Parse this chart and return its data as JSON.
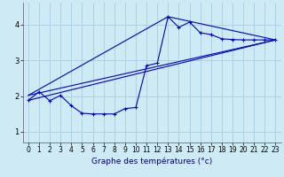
{
  "bg_color": "#ceeaf5",
  "grid_color": "#aaccdd",
  "line_color": "#0000cc",
  "xlabel": "Graphe des températures (°c)",
  "xlim": [
    -0.5,
    23.5
  ],
  "ylim": [
    0.7,
    4.6
  ],
  "yticks": [
    1,
    2,
    3,
    4
  ],
  "xticks": [
    0,
    1,
    2,
    3,
    4,
    5,
    6,
    7,
    8,
    9,
    10,
    11,
    12,
    13,
    14,
    15,
    16,
    17,
    18,
    19,
    20,
    21,
    22,
    23
  ],
  "series1_x": [
    0,
    1,
    2,
    3,
    4,
    5,
    6,
    7,
    8,
    9,
    10,
    11,
    12,
    13,
    14,
    15,
    16,
    17,
    18,
    19,
    20,
    21,
    22,
    23
  ],
  "series1_y": [
    1.88,
    2.12,
    1.87,
    2.02,
    1.73,
    1.52,
    1.5,
    1.5,
    1.5,
    1.65,
    1.68,
    2.85,
    2.92,
    4.22,
    3.92,
    4.07,
    3.77,
    3.72,
    3.6,
    3.58,
    3.57,
    3.57,
    3.57,
    3.57
  ],
  "series2_x": [
    0,
    23
  ],
  "series2_y": [
    1.88,
    3.57
  ],
  "series3_x": [
    0,
    13,
    23
  ],
  "series3_y": [
    2.02,
    4.22,
    3.57
  ],
  "series4_x": [
    0,
    23
  ],
  "series4_y": [
    1.88,
    3.57
  ],
  "xlabel_fontsize": 6.5,
  "tick_fontsize": 5.5
}
